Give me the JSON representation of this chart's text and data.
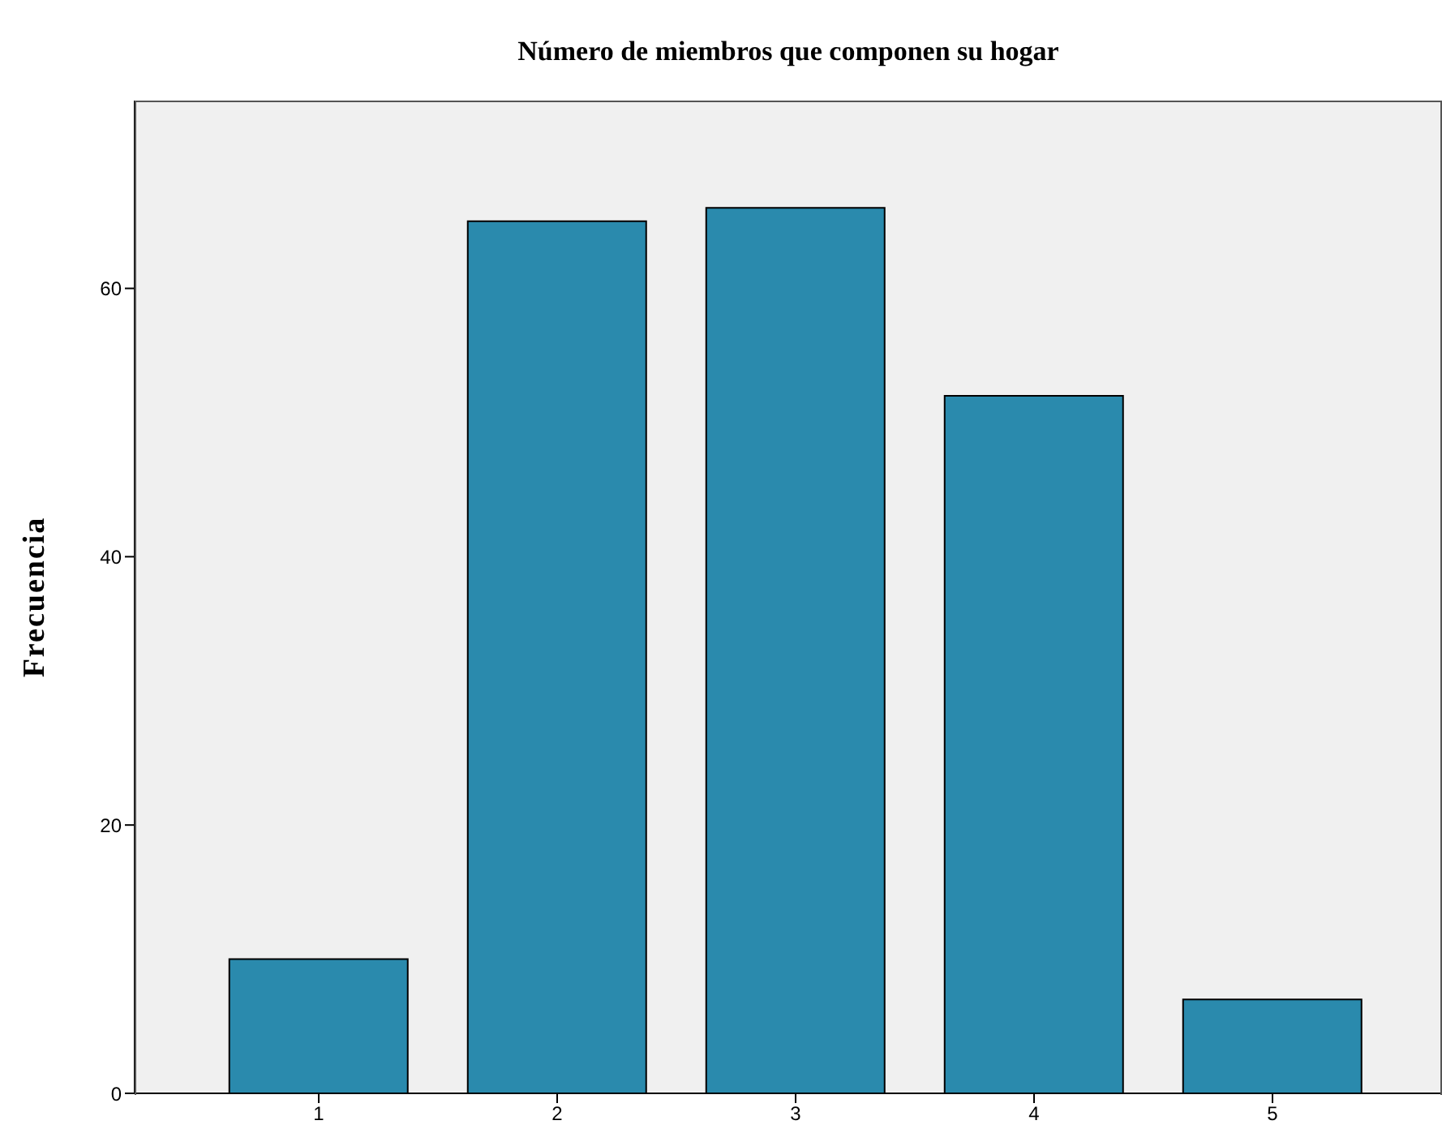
{
  "chart_data": {
    "type": "bar",
    "title": "Número de miembros que componen su hogar",
    "ylabel": "Frecuencia",
    "categories": [
      "1",
      "2",
      "3",
      "4",
      "5"
    ],
    "values": [
      10,
      65,
      66,
      52,
      7
    ],
    "color": "#2a8aad",
    "ylim": [
      0,
      74
    ],
    "yticks": [
      0,
      20,
      40,
      60
    ],
    "grid": false
  }
}
